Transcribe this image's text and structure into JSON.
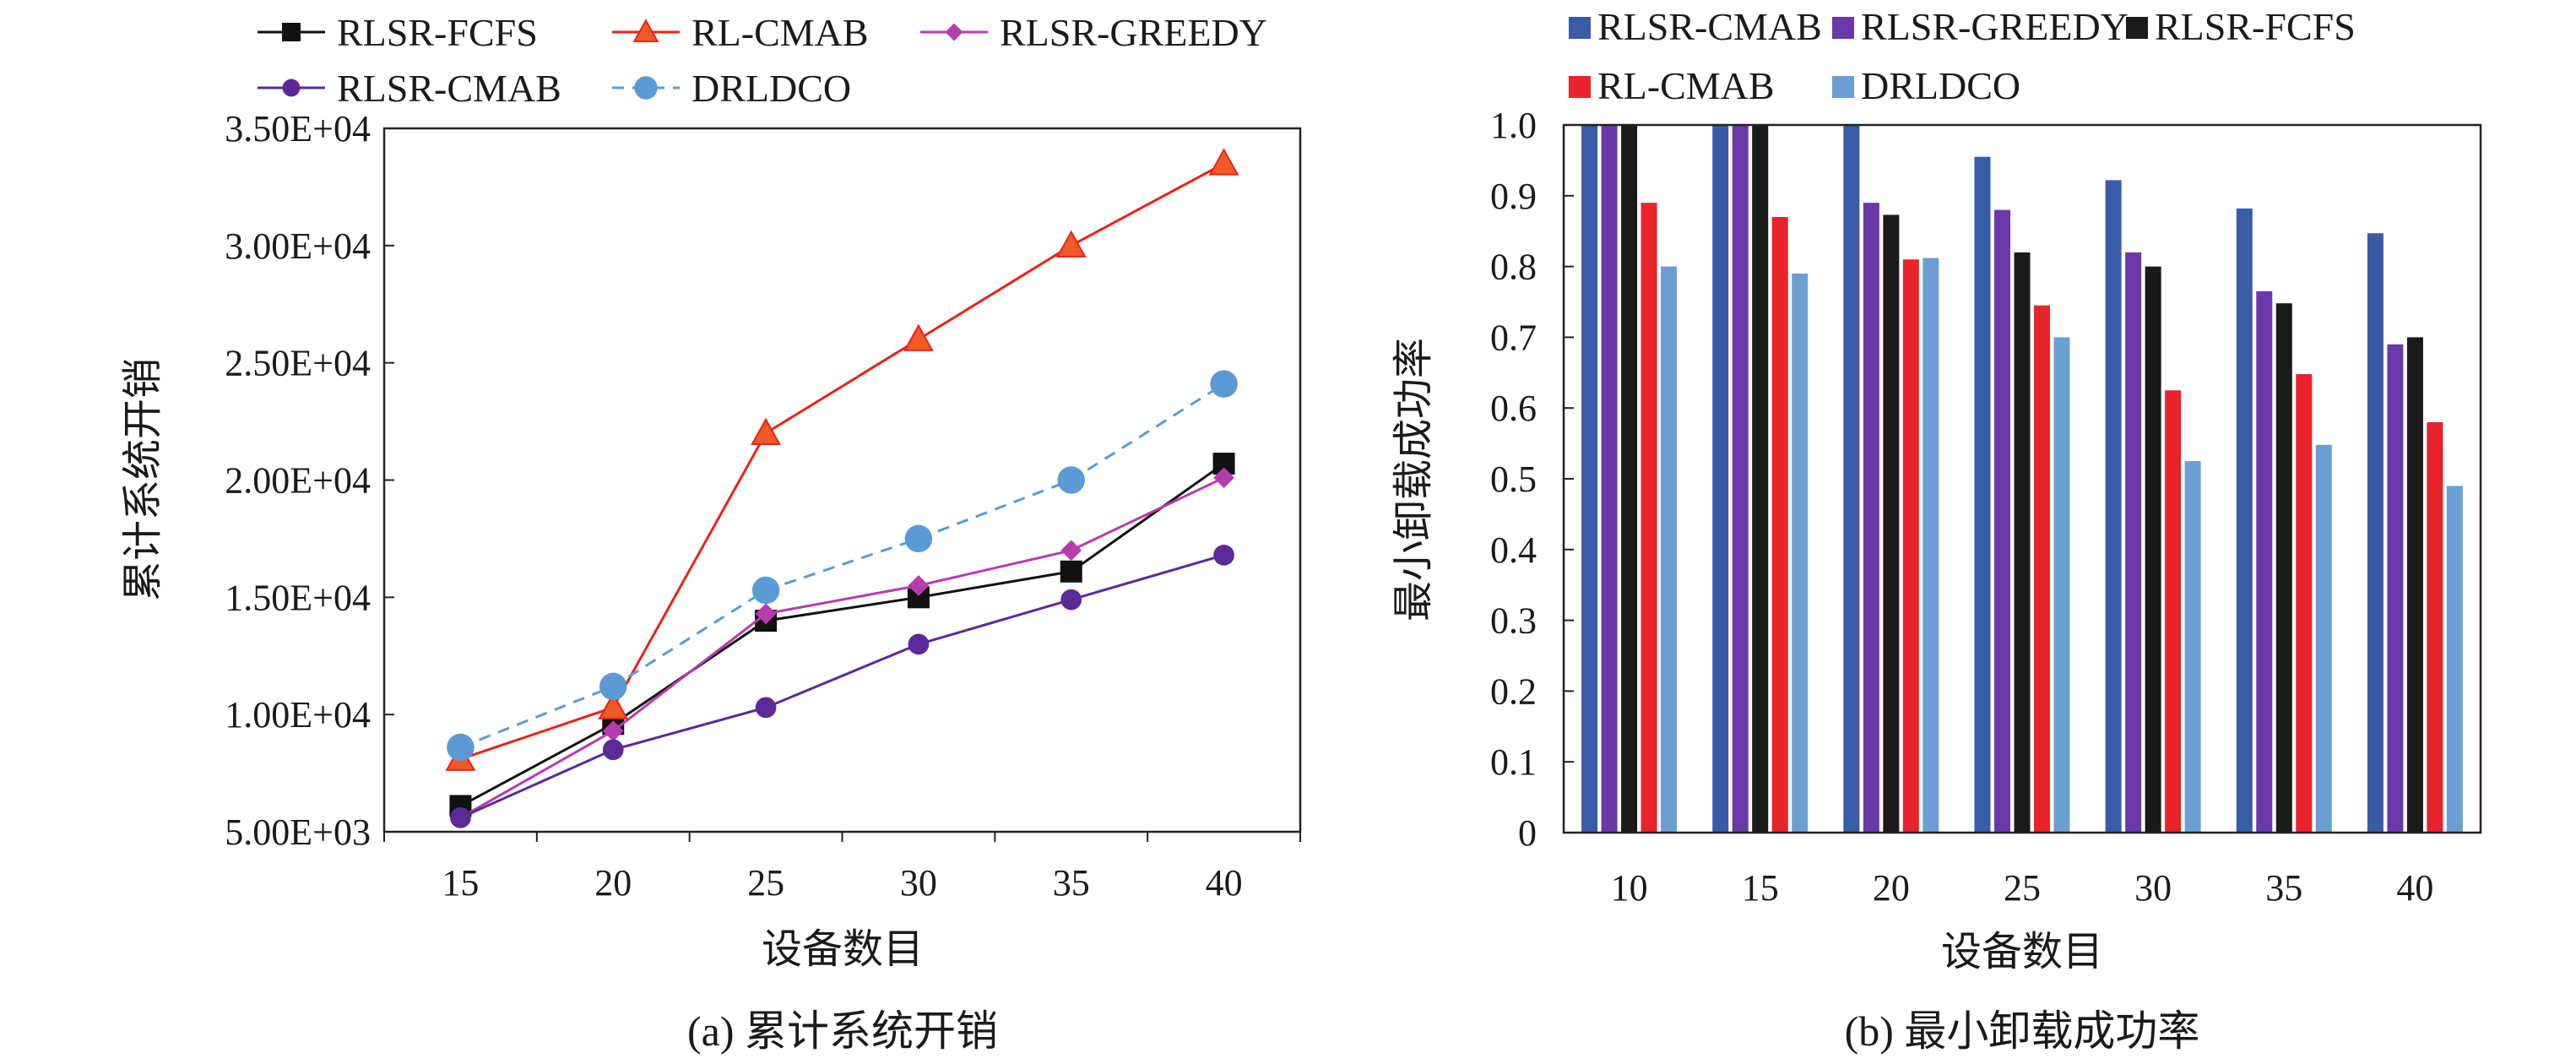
{
  "chart_data": [
    {
      "type": "line",
      "caption": "(a) 累计系统开销",
      "xlabel": "设备数目",
      "ylabel": "累计系统开销",
      "categories": [
        "15",
        "20",
        "25",
        "30",
        "35",
        "40"
      ],
      "ylim": [
        5000,
        35000
      ],
      "yticks": [
        {
          "value": 5000,
          "label": "5.00E+03"
        },
        {
          "value": 10000,
          "label": "1.00E+04"
        },
        {
          "value": 15000,
          "label": "1.50E+04"
        },
        {
          "value": 20000,
          "label": "2.00E+04"
        },
        {
          "value": 25000,
          "label": "2.50E+04"
        },
        {
          "value": 30000,
          "label": "3.00E+04"
        },
        {
          "value": 35000,
          "label": "3.50E+04"
        }
      ],
      "grid": false,
      "legend_position": "top",
      "series": [
        {
          "name": "RLSR-FCFS",
          "color": "#111111",
          "marker": "square",
          "dashed": false,
          "values": [
            6100,
            9600,
            14000,
            15000,
            16100,
            20700
          ]
        },
        {
          "name": "RL-CMAB",
          "color": "#e8231c",
          "marker": "triangle",
          "dashed": false,
          "values": [
            8100,
            10300,
            22000,
            26000,
            30000,
            33500
          ]
        },
        {
          "name": "RLSR-GREEDY",
          "color": "#b73bb0",
          "marker": "diamond",
          "dashed": false,
          "values": [
            5600,
            9300,
            14300,
            15500,
            17000,
            20100
          ]
        },
        {
          "name": "RLSR-CMAB",
          "color": "#5b2a98",
          "marker": "circle-small",
          "dashed": false,
          "values": [
            5600,
            8500,
            10300,
            13000,
            14900,
            16800
          ]
        },
        {
          "name": "DRLDCO",
          "color": "#5b9bd5",
          "marker": "circle",
          "dashed": true,
          "values": [
            8600,
            11200,
            15300,
            17500,
            20000,
            24100
          ]
        }
      ]
    },
    {
      "type": "bar",
      "caption": "(b) 最小卸载成功率",
      "xlabel": "设备数目",
      "ylabel": "最小卸载成功率",
      "categories": [
        "10",
        "15",
        "20",
        "25",
        "30",
        "35",
        "40"
      ],
      "ylim": [
        0,
        1
      ],
      "yticks": [
        {
          "value": 0,
          "label": "0"
        },
        {
          "value": 0.1,
          "label": "0.1"
        },
        {
          "value": 0.2,
          "label": "0.2"
        },
        {
          "value": 0.3,
          "label": "0.3"
        },
        {
          "value": 0.4,
          "label": "0.4"
        },
        {
          "value": 0.5,
          "label": "0.5"
        },
        {
          "value": 0.6,
          "label": "0.6"
        },
        {
          "value": 0.7,
          "label": "0.7"
        },
        {
          "value": 0.8,
          "label": "0.8"
        },
        {
          "value": 0.9,
          "label": "0.9"
        },
        {
          "value": 1.0,
          "label": "1.0"
        }
      ],
      "grid": false,
      "legend_position": "top",
      "series": [
        {
          "name": "RLSR-CMAB",
          "color": "#3a5ba8",
          "values": [
            1.0,
            1.0,
            1.0,
            0.955,
            0.922,
            0.882,
            0.847
          ]
        },
        {
          "name": "RLSR-GREEDY",
          "color": "#6a38a8",
          "values": [
            1.0,
            1.0,
            0.89,
            0.88,
            0.82,
            0.765,
            0.69
          ]
        },
        {
          "name": "RLSR-FCFS",
          "color": "#1a1a1a",
          "values": [
            1.0,
            1.0,
            0.873,
            0.82,
            0.8,
            0.748,
            0.7
          ]
        },
        {
          "name": "RL-CMAB",
          "color": "#e8232a",
          "values": [
            0.89,
            0.87,
            0.81,
            0.745,
            0.625,
            0.648,
            0.58
          ]
        },
        {
          "name": "DRLDCO",
          "color": "#6b9fd4",
          "values": [
            0.8,
            0.79,
            0.812,
            0.7,
            0.525,
            0.548,
            0.49
          ]
        }
      ]
    }
  ]
}
